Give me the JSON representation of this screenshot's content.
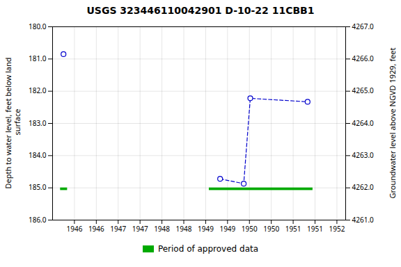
{
  "chart_data": {
    "type": "line",
    "title": "USGS 323446110042901 D-10-22 11CBB1",
    "ylabel": "Depth to water level, feet below land\n surface",
    "y2label": "Groundwater level above NGVD 1929, feet",
    "xlim": [
      1945.5,
      1952.2
    ],
    "xticks": [
      1946,
      {
        "value": 1946.5,
        "label": "1946"
      },
      1947,
      {
        "value": 1947.5,
        "label": "1947"
      },
      1948,
      {
        "value": 1948.5,
        "label": "1948"
      },
      1949,
      {
        "value": 1949.5,
        "label": "1949"
      },
      1950,
      {
        "value": 1950.5,
        "label": "1950"
      },
      1951,
      {
        "value": 1951.5,
        "label": "1951"
      },
      1952
    ],
    "ylim": [
      186.0,
      180.0
    ],
    "yticks": [
      {
        "value": 180.0,
        "label": "180.0"
      },
      {
        "value": 181.0,
        "label": "181.0"
      },
      {
        "value": 182.0,
        "label": "182.0"
      },
      {
        "value": 183.0,
        "label": "183.0"
      },
      {
        "value": 184.0,
        "label": "184.0"
      },
      {
        "value": 185.0,
        "label": "185.0"
      },
      {
        "value": 186.0,
        "label": "186.0"
      }
    ],
    "y2lim": [
      4261.0,
      4267.0
    ],
    "y2ticks": [
      {
        "value": 4267.0,
        "label": "4267.0"
      },
      {
        "value": 4266.0,
        "label": "4266.0"
      },
      {
        "value": 4265.0,
        "label": "4265.0"
      },
      {
        "value": 4264.0,
        "label": "4264.0"
      },
      {
        "value": 4263.0,
        "label": "4263.0"
      },
      {
        "value": 4262.0,
        "label": "4262.0"
      },
      {
        "value": 4261.0,
        "label": "4261.0"
      }
    ],
    "grid": true,
    "legend": "bottom",
    "series": [
      {
        "x": [
          1945.75
        ],
        "values": [
          180.85
        ],
        "color": "#0000CC",
        "marker": "o",
        "line_style": "none"
      },
      {
        "x": [
          1949.33,
          1949.87,
          1950.02,
          1951.33
        ],
        "values": [
          184.72,
          184.87,
          182.22,
          182.33
        ],
        "color": "#0000CC",
        "marker": "o",
        "line_style": "dashed"
      },
      {
        "name": "Period of approved data",
        "type": "band",
        "color": "#00aa00",
        "x_ranges": [
          [
            1945.68,
            1945.84
          ],
          [
            1949.08,
            1951.45
          ]
        ],
        "y_range": [
          185.0,
          185.08
        ]
      }
    ]
  }
}
